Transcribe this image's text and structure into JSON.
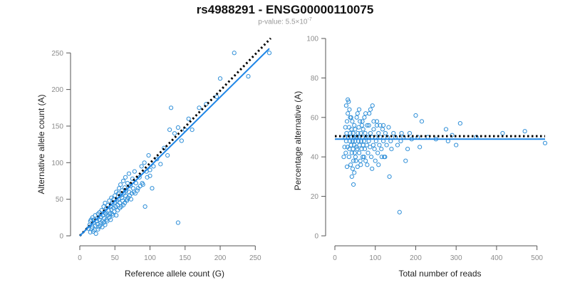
{
  "title": "rs4988291 - ENSG00000110075",
  "subtitle": {
    "prefix": "p-value: 5.5×10",
    "exponent": "-7"
  },
  "colors": {
    "points": "#2f8fd8",
    "fit": "#1f86e6",
    "expected": "#000000"
  },
  "chart_data": [
    {
      "type": "scatter",
      "id": "left",
      "xlabel": "Reference allele count (G)",
      "ylabel": "Alternative allele count (A)",
      "xlim": [
        0,
        270
      ],
      "ylim": [
        0,
        260
      ],
      "xticks": [
        0,
        50,
        100,
        150,
        200,
        250
      ],
      "yticks": [
        0,
        50,
        100,
        150,
        200,
        250
      ],
      "fit_line": {
        "x0": 0,
        "y0": 0,
        "x1": 270,
        "y1": 256
      },
      "expected_line": {
        "x0": 0,
        "y0": 0,
        "x1": 272,
        "y1": 270
      },
      "points": [
        [
          12,
          10
        ],
        [
          14,
          15
        ],
        [
          15,
          20
        ],
        [
          16,
          22
        ],
        [
          18,
          12
        ],
        [
          18,
          25
        ],
        [
          20,
          18
        ],
        [
          20,
          22
        ],
        [
          21,
          8
        ],
        [
          22,
          14
        ],
        [
          22,
          28
        ],
        [
          24,
          20
        ],
        [
          25,
          16
        ],
        [
          25,
          24
        ],
        [
          26,
          30
        ],
        [
          27,
          12
        ],
        [
          28,
          22
        ],
        [
          28,
          32
        ],
        [
          30,
          18
        ],
        [
          30,
          26
        ],
        [
          31,
          35
        ],
        [
          32,
          20
        ],
        [
          33,
          28
        ],
        [
          34,
          40
        ],
        [
          35,
          24
        ],
        [
          35,
          32
        ],
        [
          36,
          45
        ],
        [
          37,
          30
        ],
        [
          38,
          22
        ],
        [
          38,
          38
        ],
        [
          40,
          28
        ],
        [
          40,
          42
        ],
        [
          41,
          35
        ],
        [
          42,
          48
        ],
        [
          43,
          30
        ],
        [
          44,
          40
        ],
        [
          45,
          52
        ],
        [
          45,
          36
        ],
        [
          46,
          44
        ],
        [
          47,
          28
        ],
        [
          48,
          50
        ],
        [
          48,
          38
        ],
        [
          50,
          46
        ],
        [
          50,
          55
        ],
        [
          51,
          40
        ],
        [
          52,
          60
        ],
        [
          53,
          48
        ],
        [
          54,
          42
        ],
        [
          55,
          58
        ],
        [
          55,
          50
        ],
        [
          56,
          65
        ],
        [
          57,
          45
        ],
        [
          58,
          55
        ],
        [
          58,
          70
        ],
        [
          60,
          52
        ],
        [
          60,
          62
        ],
        [
          61,
          48
        ],
        [
          62,
          75
        ],
        [
          63,
          58
        ],
        [
          64,
          66
        ],
        [
          65,
          55
        ],
        [
          65,
          80
        ],
        [
          66,
          62
        ],
        [
          67,
          50
        ],
        [
          68,
          72
        ],
        [
          70,
          60
        ],
        [
          70,
          85
        ],
        [
          72,
          68
        ],
        [
          74,
          58
        ],
        [
          75,
          78
        ],
        [
          76,
          65
        ],
        [
          78,
          88
        ],
        [
          80,
          72
        ],
        [
          82,
          62
        ],
        [
          85,
          80
        ],
        [
          88,
          95
        ],
        [
          90,
          70
        ],
        [
          92,
          100
        ],
        [
          95,
          88
        ],
        [
          98,
          110
        ],
        [
          100,
          90
        ],
        [
          105,
          95
        ],
        [
          110,
          105
        ],
        [
          115,
          98
        ],
        [
          120,
          120
        ],
        [
          125,
          110
        ],
        [
          128,
          145
        ],
        [
          130,
          175
        ],
        [
          135,
          140
        ],
        [
          140,
          148
        ],
        [
          140,
          18
        ],
        [
          145,
          130
        ],
        [
          150,
          145
        ],
        [
          155,
          160
        ],
        [
          160,
          145
        ],
        [
          170,
          175
        ],
        [
          180,
          180
        ],
        [
          195,
          190
        ],
        [
          200,
          215
        ],
        [
          220,
          250
        ],
        [
          240,
          218
        ],
        [
          270,
          250
        ],
        [
          15,
          5
        ],
        [
          17,
          10
        ],
        [
          19,
          6
        ],
        [
          23,
          3
        ],
        [
          26,
          9
        ],
        [
          29,
          14
        ],
        [
          32,
          12
        ],
        [
          34,
          18
        ],
        [
          36,
          15
        ],
        [
          39,
          20
        ],
        [
          42,
          25
        ],
        [
          44,
          22
        ],
        [
          46,
          30
        ],
        [
          49,
          33
        ],
        [
          52,
          28
        ],
        [
          54,
          35
        ],
        [
          57,
          38
        ],
        [
          59,
          40
        ],
        [
          62,
          42
        ],
        [
          64,
          45
        ],
        [
          67,
          48
        ],
        [
          69,
          52
        ],
        [
          71,
          55
        ],
        [
          73,
          50
        ],
        [
          77,
          60
        ],
        [
          79,
          58
        ],
        [
          83,
          65
        ],
        [
          86,
          68
        ],
        [
          89,
          72
        ],
        [
          93,
          40
        ],
        [
          96,
          80
        ],
        [
          100,
          82
        ],
        [
          103,
          65
        ]
      ]
    },
    {
      "type": "scatter",
      "id": "right",
      "xlabel": "Total number of reads",
      "ylabel": "Percentage alternative (A)",
      "xlim": [
        0,
        520
      ],
      "ylim": [
        0,
        100
      ],
      "xticks": [
        0,
        100,
        200,
        300,
        400,
        500
      ],
      "yticks": [
        0,
        20,
        40,
        60,
        80,
        100
      ],
      "fit_line": {
        "x0": 0,
        "y0": 49,
        "x1": 520,
        "y1": 49
      },
      "expected_line": {
        "x0": 0,
        "y0": 50.5,
        "x1": 520,
        "y1": 50.5
      },
      "points": [
        [
          22,
          40
        ],
        [
          24,
          45
        ],
        [
          25,
          50
        ],
        [
          26,
          55
        ],
        [
          27,
          42
        ],
        [
          28,
          48
        ],
        [
          29,
          52
        ],
        [
          30,
          58
        ],
        [
          30,
          35
        ],
        [
          31,
          45
        ],
        [
          32,
          62
        ],
        [
          33,
          50
        ],
        [
          34,
          68
        ],
        [
          35,
          40
        ],
        [
          35,
          55
        ],
        [
          36,
          44
        ],
        [
          37,
          48
        ],
        [
          38,
          52
        ],
        [
          38,
          60
        ],
        [
          39,
          36
        ],
        [
          40,
          46
        ],
        [
          40,
          50
        ],
        [
          41,
          54
        ],
        [
          42,
          30
        ],
        [
          42,
          42
        ],
        [
          43,
          58
        ],
        [
          44,
          48
        ],
        [
          45,
          44
        ],
        [
          45,
          52
        ],
        [
          46,
          26
        ],
        [
          46,
          38
        ],
        [
          47,
          50
        ],
        [
          48,
          56
        ],
        [
          48,
          46
        ],
        [
          49,
          42
        ],
        [
          50,
          48
        ],
        [
          50,
          54
        ],
        [
          51,
          40
        ],
        [
          52,
          50
        ],
        [
          53,
          45
        ],
        [
          54,
          60
        ],
        [
          55,
          44
        ],
        [
          55,
          50
        ],
        [
          56,
          35
        ],
        [
          57,
          52
        ],
        [
          58,
          48
        ],
        [
          59,
          55
        ],
        [
          60,
          42
        ],
        [
          60,
          50
        ],
        [
          61,
          46
        ],
        [
          62,
          58
        ],
        [
          63,
          38
        ],
        [
          64,
          52
        ],
        [
          65,
          48
        ],
        [
          66,
          44
        ],
        [
          67,
          56
        ],
        [
          68,
          50
        ],
        [
          69,
          40
        ],
        [
          70,
          46
        ],
        [
          70,
          54
        ],
        [
          72,
          48
        ],
        [
          73,
          60
        ],
        [
          74,
          44
        ],
        [
          75,
          52
        ],
        [
          76,
          38
        ],
        [
          78,
          50
        ],
        [
          79,
          46
        ],
        [
          80,
          56
        ],
        [
          82,
          42
        ],
        [
          83,
          50
        ],
        [
          84,
          48
        ],
        [
          85,
          62
        ],
        [
          87,
          45
        ],
        [
          88,
          52
        ],
        [
          90,
          40
        ],
        [
          92,
          50
        ],
        [
          93,
          66
        ],
        [
          95,
          46
        ],
        [
          96,
          54
        ],
        [
          98,
          44
        ],
        [
          100,
          50
        ],
        [
          102,
          48
        ],
        [
          104,
          58
        ],
        [
          106,
          42
        ],
        [
          108,
          52
        ],
        [
          110,
          46
        ],
        [
          112,
          50
        ],
        [
          115,
          44
        ],
        [
          118,
          54
        ],
        [
          120,
          48
        ],
        [
          122,
          40
        ],
        [
          125,
          52
        ],
        [
          128,
          46
        ],
        [
          130,
          50
        ],
        [
          133,
          55
        ],
        [
          135,
          30
        ],
        [
          138,
          48
        ],
        [
          140,
          44
        ],
        [
          145,
          52
        ],
        [
          150,
          50
        ],
        [
          155,
          46
        ],
        [
          160,
          12
        ],
        [
          163,
          48
        ],
        [
          165,
          52
        ],
        [
          170,
          50
        ],
        [
          175,
          38
        ],
        [
          180,
          44
        ],
        [
          185,
          52
        ],
        [
          190,
          49
        ],
        [
          200,
          61
        ],
        [
          205,
          50
        ],
        [
          210,
          45
        ],
        [
          215,
          58
        ],
        [
          230,
          50
        ],
        [
          250,
          49
        ],
        [
          275,
          54
        ],
        [
          280,
          48
        ],
        [
          290,
          51
        ],
        [
          300,
          46
        ],
        [
          310,
          57
        ],
        [
          350,
          50
        ],
        [
          415,
          52
        ],
        [
          470,
          53
        ],
        [
          520,
          47
        ],
        [
          28,
          66
        ],
        [
          32,
          69
        ],
        [
          36,
          64
        ],
        [
          40,
          60
        ],
        [
          44,
          34
        ],
        [
          48,
          32
        ],
        [
          52,
          38
        ],
        [
          56,
          62
        ],
        [
          60,
          64
        ],
        [
          64,
          36
        ],
        [
          68,
          58
        ],
        [
          72,
          40
        ],
        [
          76,
          62
        ],
        [
          80,
          36
        ],
        [
          84,
          56
        ],
        [
          88,
          64
        ],
        [
          92,
          34
        ],
        [
          96,
          58
        ],
        [
          100,
          38
        ],
        [
          104,
          56
        ],
        [
          108,
          36
        ],
        [
          112,
          56
        ],
        [
          116,
          40
        ],
        [
          120,
          56
        ],
        [
          124,
          40
        ]
      ]
    }
  ]
}
